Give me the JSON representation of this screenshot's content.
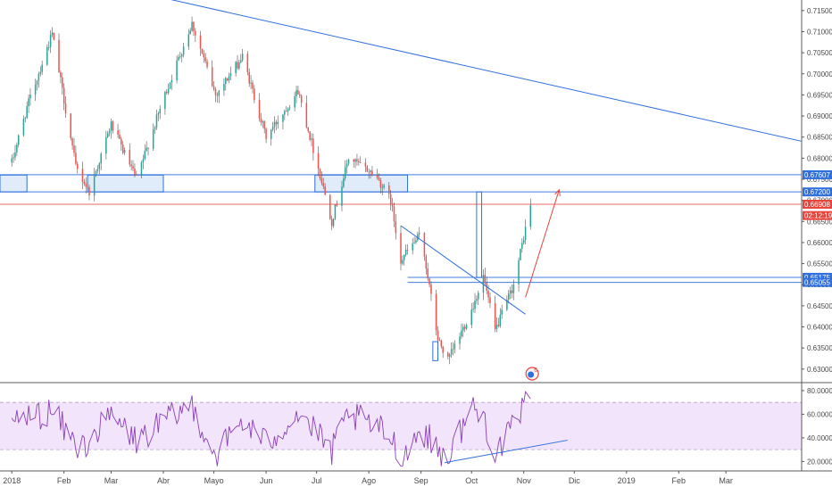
{
  "chart_data": [
    {
      "type": "candlestick",
      "instrument_scale": "price",
      "ylim": [
        0.627,
        0.7175
      ],
      "y_ticks": [
        {
          "value": 0.63,
          "label": "0.63000"
        },
        {
          "value": 0.635,
          "label": "0.63500"
        },
        {
          "value": 0.64,
          "label": "0.64000"
        },
        {
          "value": 0.645,
          "label": "0.64500"
        },
        {
          "value": 0.65,
          "label": "0.65000"
        },
        {
          "value": 0.655,
          "label": "0.65500"
        },
        {
          "value": 0.66,
          "label": "0.66000"
        },
        {
          "value": 0.665,
          "label": "0.66500"
        },
        {
          "value": 0.67,
          "label": "0.67000"
        },
        {
          "value": 0.675,
          "label": "0.67500"
        },
        {
          "value": 0.68,
          "label": "0.68000"
        },
        {
          "value": 0.685,
          "label": "0.68500"
        },
        {
          "value": 0.69,
          "label": "0.69000"
        },
        {
          "value": 0.695,
          "label": "0.69500"
        },
        {
          "value": 0.7,
          "label": "0.70000"
        },
        {
          "value": 0.705,
          "label": "0.70500"
        },
        {
          "value": 0.71,
          "label": "0.71000"
        },
        {
          "value": 0.715,
          "label": "0.71500"
        }
      ],
      "price_tags": [
        {
          "value": 0.67607,
          "label": "0.67607",
          "color": "#2f6fde"
        },
        {
          "value": 0.672,
          "label": "0.67200",
          "color": "#2f6fde"
        },
        {
          "value": 0.66908,
          "label": "0.66908",
          "color": "#e8453c"
        },
        {
          "value": 0.6664,
          "label": "02:12:19",
          "color": "#e8453c"
        },
        {
          "value": 0.65175,
          "label": "0.65175",
          "color": "#2f6fde"
        },
        {
          "value": 0.65055,
          "label": "0.65055",
          "color": "#2f6fde"
        }
      ],
      "candle_colors": {
        "up": "#26a69a",
        "down": "#ef5350",
        "wick": "#555555"
      },
      "keypoints": [
        [
          "2018-01-01",
          0.679
        ],
        [
          "2018-01-10",
          0.692
        ],
        [
          "2018-01-25",
          0.7095
        ],
        [
          "2018-02-08",
          0.678
        ],
        [
          "2018-02-16",
          0.672
        ],
        [
          "2018-03-01",
          0.688
        ],
        [
          "2018-03-16",
          0.675
        ],
        [
          "2018-04-01",
          0.694
        ],
        [
          "2018-04-18",
          0.712
        ],
        [
          "2018-05-02",
          0.695
        ],
        [
          "2018-05-18",
          0.704
        ],
        [
          "2018-06-01",
          0.685
        ],
        [
          "2018-06-20",
          0.696
        ],
        [
          "2018-07-05",
          0.673
        ],
        [
          "2018-07-10",
          0.665
        ],
        [
          "2018-07-20",
          0.68
        ],
        [
          "2018-08-05",
          0.676
        ],
        [
          "2018-08-14",
          0.67
        ],
        [
          "2018-08-20",
          0.656
        ],
        [
          "2018-09-01",
          0.662
        ],
        [
          "2018-09-11",
          0.637
        ],
        [
          "2018-09-17",
          0.632
        ],
        [
          "2018-10-01",
          0.644
        ],
        [
          "2018-10-08",
          0.652
        ],
        [
          "2018-10-15",
          0.639
        ],
        [
          "2018-10-26",
          0.65
        ],
        [
          "2018-11-05",
          0.669
        ]
      ],
      "drawings": {
        "resistance_trendline": [
          [
            "2018-01-13",
            0.725
          ],
          [
            "2019-04-15",
            0.684
          ]
        ],
        "falling_wedge_line": [
          [
            "2018-08-20",
            0.664
          ],
          [
            "2018-11-02",
            0.643
          ]
        ],
        "projection_arrow": [
          [
            "2018-11-02",
            0.647
          ],
          [
            "2018-11-22",
            0.6725
          ]
        ],
        "horizontal_levels": [
          0.67607,
          0.672,
          0.66908,
          0.65175,
          0.65055
        ],
        "supply_zone_boxes": [
          [
            [
              "2017-12-20",
              0.676
            ],
            [
              "2018-01-10",
              0.672
            ]
          ],
          [
            [
              "2018-02-15",
              0.676
            ],
            [
              "2018-04-01",
              0.672
            ]
          ],
          [
            [
              "2018-06-30",
              0.676
            ],
            [
              "2018-08-24",
              0.672
            ]
          ]
        ],
        "measured_moves": [
          [
            [
              "2018-09-08",
              0.6365
            ],
            [
              "2018-09-11",
              0.632
            ]
          ],
          [
            [
              "2018-10-04",
              0.672
            ],
            [
              "2018-10-07",
              0.6517
            ]
          ]
        ]
      },
      "marker": "6"
    },
    {
      "type": "line",
      "indicator": "RSI",
      "ylim": [
        12,
        86
      ],
      "y_ticks": [
        {
          "value": 20,
          "label": "20.0000"
        },
        {
          "value": 40,
          "label": "40.0000"
        },
        {
          "value": 60,
          "label": "60.0000"
        },
        {
          "value": 80,
          "label": "80.0000"
        }
      ],
      "band": [
        30,
        70
      ],
      "band_color": "#f1e4fb",
      "line_color": "#8b3fb5",
      "keypoints": [
        [
          "2018-01-01",
          55
        ],
        [
          "2018-01-25",
          62
        ],
        [
          "2018-02-10",
          30
        ],
        [
          "2018-03-01",
          58
        ],
        [
          "2018-03-16",
          38
        ],
        [
          "2018-04-18",
          68
        ],
        [
          "2018-05-02",
          25
        ],
        [
          "2018-05-18",
          55
        ],
        [
          "2018-06-01",
          35
        ],
        [
          "2018-06-20",
          62
        ],
        [
          "2018-07-10",
          28
        ],
        [
          "2018-07-20",
          60
        ],
        [
          "2018-08-14",
          42
        ],
        [
          "2018-08-20",
          22
        ],
        [
          "2018-09-01",
          48
        ],
        [
          "2018-09-11",
          30
        ],
        [
          "2018-09-17",
          24
        ],
        [
          "2018-10-01",
          66
        ],
        [
          "2018-10-08",
          58
        ],
        [
          "2018-10-15",
          28
        ],
        [
          "2018-10-26",
          48
        ],
        [
          "2018-11-01",
          66
        ],
        [
          "2018-11-05",
          82
        ]
      ],
      "divergence_line": [
        [
          "2018-09-15",
          19
        ],
        [
          "2018-11-27",
          38
        ]
      ]
    }
  ],
  "x_axis": {
    "range": [
      "2017-12-25",
      "2019-04-15"
    ],
    "ticks": [
      {
        "date": "2018-01-01",
        "label": "2018"
      },
      {
        "date": "2018-02-01",
        "label": "Feb"
      },
      {
        "date": "2018-03-01",
        "label": "Mar"
      },
      {
        "date": "2018-04-01",
        "label": "Abr"
      },
      {
        "date": "2018-05-01",
        "label": "Mayo"
      },
      {
        "date": "2018-06-01",
        "label": "Jun"
      },
      {
        "date": "2018-07-01",
        "label": "Jul"
      },
      {
        "date": "2018-08-01",
        "label": "Ago"
      },
      {
        "date": "2018-09-01",
        "label": "Sep"
      },
      {
        "date": "2018-10-01",
        "label": "Oct"
      },
      {
        "date": "2018-11-01",
        "label": "Nov"
      },
      {
        "date": "2018-12-01",
        "label": "Dic"
      },
      {
        "date": "2019-01-01",
        "label": "2019"
      },
      {
        "date": "2019-02-01",
        "label": "Feb"
      },
      {
        "date": "2019-03-01",
        "label": "Mar"
      }
    ]
  }
}
